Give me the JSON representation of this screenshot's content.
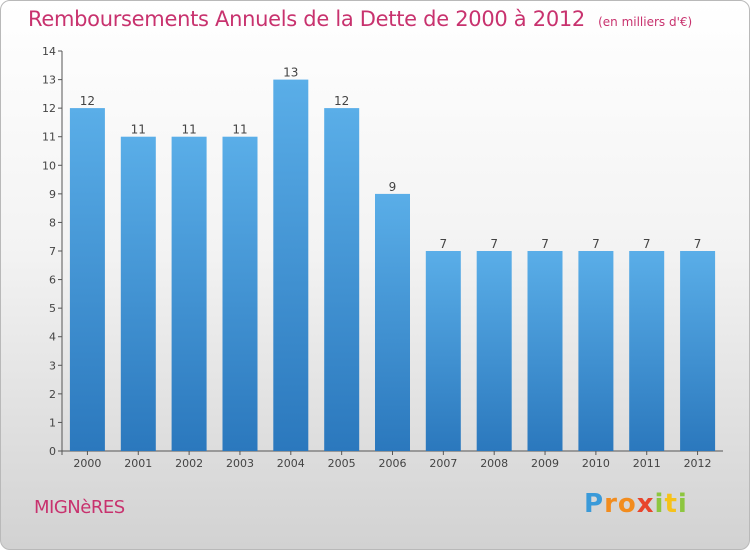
{
  "chart_data": {
    "type": "bar",
    "title": "Remboursements Annuels de la Dette de 2000 à 2012",
    "unit": "(en milliers d'€)",
    "categories": [
      "2000",
      "2001",
      "2002",
      "2003",
      "2004",
      "2005",
      "2006",
      "2007",
      "2008",
      "2009",
      "2010",
      "2011",
      "2012"
    ],
    "values": [
      12,
      11,
      11,
      11,
      13,
      12,
      9,
      7,
      7,
      7,
      7,
      7,
      7
    ],
    "ylim": [
      0,
      14
    ],
    "yticks": [
      "0",
      "1",
      "2",
      "3",
      "4",
      "5",
      "6",
      "7",
      "8",
      "9",
      "10",
      "11",
      "12",
      "13",
      "14"
    ],
    "bar_color": "#3a8fd4",
    "grid": false
  },
  "place_name": "MIGNèRES",
  "logo": {
    "text": "Proxiti",
    "colors": [
      "#3a9ad9",
      "#f28c1e",
      "#8dc63f",
      "#e8452c",
      "#f6c21a"
    ]
  },
  "colors": {
    "title": "#c8326e",
    "place": "#c8326e"
  }
}
